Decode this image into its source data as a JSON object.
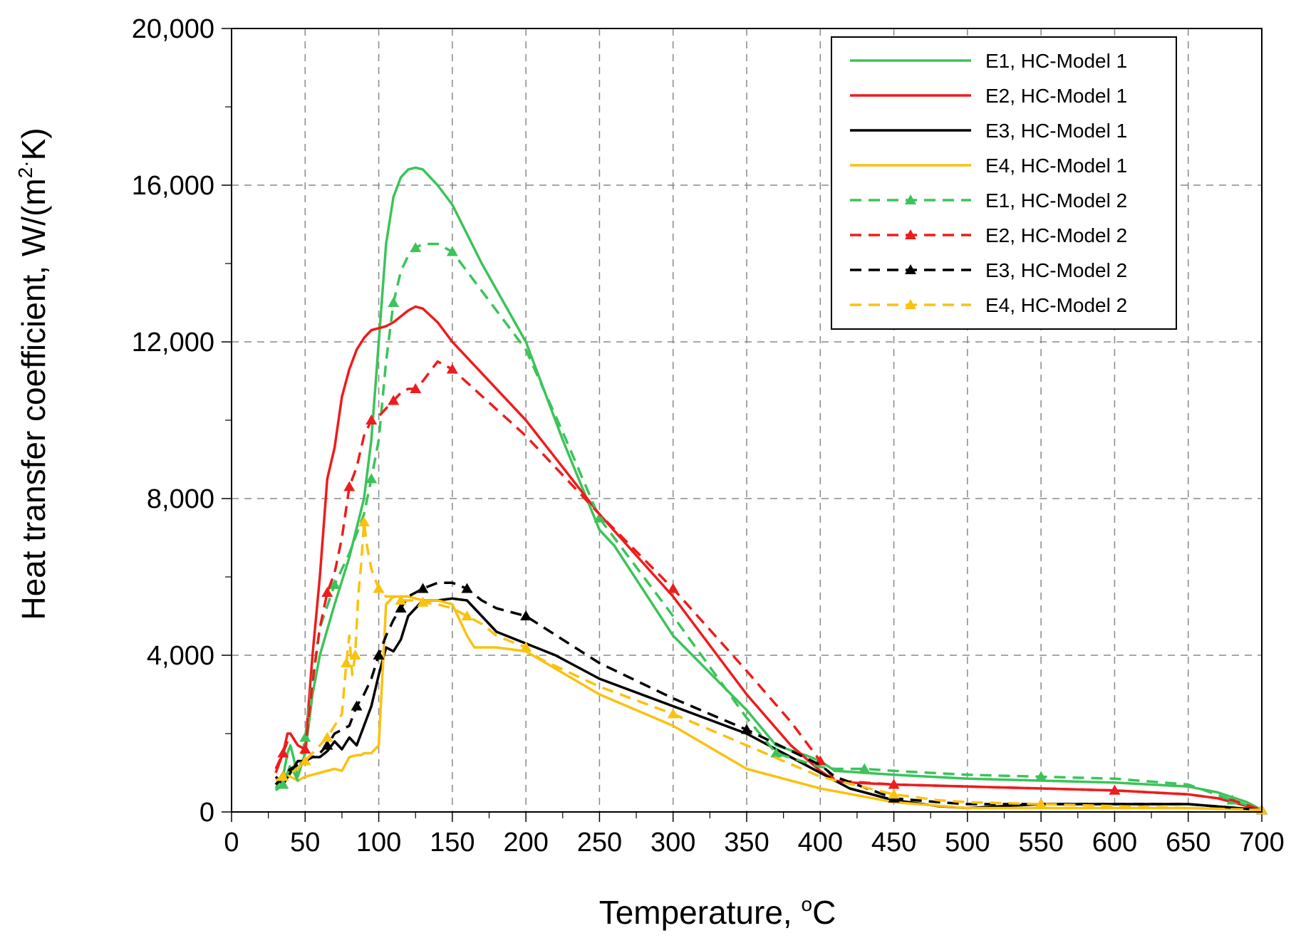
{
  "chart_data": {
    "type": "line",
    "xlabel": "Temperature, ",
    "xlabel_sup": "o",
    "xlabel_unit": "C",
    "ylabel_main": "Heat transfer coefficient, W/(m",
    "ylabel_sup": "2",
    "ylabel_dot": "·",
    "ylabel_end": "K)",
    "xlim": [
      0,
      700
    ],
    "ylim": [
      0,
      20000
    ],
    "x_ticks": [
      "0",
      "50",
      "100",
      "150",
      "200",
      "250",
      "300",
      "350",
      "400",
      "450",
      "500",
      "550",
      "600",
      "650",
      "700"
    ],
    "y_ticks": [
      "0",
      "4,000",
      "8,000",
      "12,000",
      "16,000",
      "20,000"
    ],
    "grid": true,
    "legend_position": "top-right",
    "series": [
      {
        "name": "E1, HC-Model 1",
        "color": "#3cc35a",
        "dash": false,
        "marker": false,
        "x": [
          30,
          35,
          38,
          40,
          42,
          45,
          50,
          55,
          60,
          70,
          80,
          90,
          95,
          100,
          105,
          110,
          115,
          120,
          125,
          130,
          140,
          150,
          170,
          200,
          225,
          250,
          260,
          300,
          350,
          370,
          390,
          400,
          410,
          450,
          500,
          550,
          600,
          650,
          670,
          690,
          700
        ],
        "y": [
          600,
          900,
          1500,
          1700,
          1400,
          900,
          1500,
          3000,
          4000,
          5300,
          6500,
          8000,
          9500,
          12000,
          14500,
          15700,
          16200,
          16400,
          16450,
          16400,
          16000,
          15500,
          14000,
          12000,
          9500,
          7200,
          6800,
          4500,
          2600,
          1700,
          1450,
          1300,
          1050,
          950,
          850,
          800,
          750,
          650,
          500,
          250,
          50
        ]
      },
      {
        "name": "E2, HC-Model 1",
        "color": "#ee1c1c",
        "dash": false,
        "marker": false,
        "x": [
          30,
          35,
          38,
          40,
          45,
          50,
          55,
          60,
          65,
          70,
          75,
          80,
          85,
          90,
          95,
          100,
          105,
          110,
          115,
          120,
          125,
          130,
          140,
          150,
          200,
          250,
          300,
          350,
          380,
          400,
          410,
          420,
          450,
          500,
          550,
          600,
          650,
          670,
          700
        ],
        "y": [
          1000,
          1500,
          2000,
          2000,
          1700,
          1600,
          4000,
          6000,
          8500,
          9300,
          10600,
          11300,
          11800,
          12100,
          12300,
          12350,
          12400,
          12500,
          12650,
          12800,
          12900,
          12850,
          12500,
          12000,
          10000,
          7600,
          5500,
          3000,
          1700,
          1050,
          800,
          750,
          700,
          650,
          600,
          550,
          450,
          350,
          50
        ]
      },
      {
        "name": "E3, HC-Model 1",
        "color": "#000000",
        "dash": false,
        "marker": false,
        "x": [
          30,
          35,
          40,
          45,
          50,
          55,
          60,
          65,
          70,
          75,
          80,
          85,
          90,
          95,
          100,
          105,
          110,
          115,
          120,
          130,
          140,
          150,
          160,
          170,
          180,
          200,
          220,
          240,
          250,
          300,
          350,
          400,
          420,
          450,
          480,
          500,
          550,
          600,
          650,
          700
        ],
        "y": [
          900,
          700,
          1000,
          1300,
          1300,
          1400,
          1400,
          1550,
          1800,
          1600,
          1900,
          1700,
          2200,
          2700,
          3500,
          4200,
          4100,
          4400,
          5000,
          5400,
          5400,
          5450,
          5400,
          5000,
          4600,
          4300,
          4000,
          3600,
          3400,
          2700,
          2000,
          1000,
          600,
          300,
          150,
          100,
          200,
          200,
          200,
          50
        ]
      },
      {
        "name": "E4, HC-Model 1",
        "color": "#fac10f",
        "dash": false,
        "marker": false,
        "x": [
          30,
          35,
          40,
          45,
          50,
          55,
          60,
          70,
          75,
          80,
          85,
          88,
          90,
          92,
          95,
          100,
          105,
          110,
          115,
          120,
          130,
          140,
          150,
          155,
          160,
          165,
          170,
          180,
          200,
          250,
          300,
          350,
          400,
          450,
          500,
          550,
          600,
          650,
          700
        ],
        "y": [
          700,
          1000,
          900,
          800,
          900,
          950,
          1000,
          1100,
          1050,
          1400,
          1450,
          1450,
          1500,
          1500,
          1500,
          1700,
          5300,
          5500,
          5500,
          5500,
          5400,
          5400,
          5300,
          4900,
          4500,
          4200,
          4200,
          4200,
          4100,
          3000,
          2200,
          1100,
          600,
          250,
          100,
          100,
          100,
          100,
          50
        ]
      },
      {
        "name": "E1, HC-Model 2",
        "color": "#3cc35a",
        "dash": true,
        "marker": true,
        "x": [
          30,
          35,
          40,
          45,
          50,
          55,
          60,
          70,
          80,
          90,
          95,
          100,
          105,
          110,
          115,
          120,
          125,
          130,
          140,
          150,
          200,
          225,
          250,
          300,
          350,
          370,
          400,
          410,
          430,
          450,
          500,
          550,
          600,
          650,
          680,
          700
        ],
        "y": [
          550,
          700,
          1200,
          800,
          1900,
          3400,
          4700,
          5800,
          6600,
          7600,
          8500,
          9500,
          11500,
          13000,
          13800,
          14200,
          14400,
          14500,
          14500,
          14300,
          11800,
          9700,
          7500,
          5000,
          2400,
          1500,
          1150,
          1100,
          1100,
          1050,
          950,
          900,
          850,
          700,
          300,
          50
        ]
      },
      {
        "name": "E2, HC-Model 2",
        "color": "#ee1c1c",
        "dash": true,
        "marker": true,
        "x": [
          30,
          35,
          40,
          45,
          50,
          55,
          60,
          65,
          70,
          75,
          80,
          85,
          90,
          95,
          100,
          105,
          110,
          115,
          120,
          125,
          130,
          140,
          150,
          200,
          250,
          300,
          350,
          380,
          400,
          410,
          430,
          450,
          500,
          550,
          600,
          650,
          680,
          700
        ],
        "y": [
          1100,
          1500,
          2000,
          1700,
          1600,
          3300,
          4700,
          5600,
          6100,
          7000,
          8300,
          8800,
          9600,
          10000,
          10100,
          10300,
          10500,
          10700,
          10800,
          10800,
          11000,
          11500,
          11300,
          9600,
          7600,
          5700,
          3600,
          2300,
          1300,
          800,
          750,
          700,
          650,
          600,
          550,
          450,
          300,
          50
        ]
      },
      {
        "name": "E3, HC-Model 2",
        "color": "#000000",
        "dash": true,
        "marker": true,
        "x": [
          30,
          35,
          40,
          45,
          50,
          55,
          60,
          65,
          70,
          80,
          85,
          90,
          95,
          100,
          105,
          110,
          115,
          120,
          125,
          130,
          140,
          150,
          160,
          170,
          180,
          200,
          250,
          300,
          350,
          400,
          410,
          450,
          480,
          500,
          550,
          600,
          650,
          700
        ],
        "y": [
          700,
          900,
          1100,
          1200,
          1300,
          1400,
          1500,
          1700,
          2000,
          2200,
          2700,
          3000,
          3400,
          4000,
          4500,
          4900,
          5200,
          5500,
          5600,
          5700,
          5850,
          5850,
          5700,
          5400,
          5200,
          5000,
          3800,
          2900,
          2100,
          1200,
          900,
          350,
          250,
          200,
          200,
          200,
          200,
          50
        ]
      },
      {
        "name": "E4, HC-Model 2",
        "color": "#fac10f",
        "dash": true,
        "marker": true,
        "x": [
          30,
          35,
          40,
          45,
          50,
          55,
          60,
          65,
          70,
          75,
          78,
          80,
          82,
          84,
          86,
          88,
          90,
          92,
          95,
          100,
          105,
          110,
          115,
          120,
          125,
          130,
          140,
          150,
          160,
          170,
          180,
          200,
          210,
          250,
          300,
          350,
          400,
          450,
          480,
          500,
          550,
          600,
          650,
          700
        ],
        "y": [
          800,
          900,
          1000,
          1100,
          1300,
          1500,
          1700,
          1900,
          2200,
          2500,
          3800,
          4500,
          3500,
          4000,
          5500,
          6300,
          7400,
          6800,
          6200,
          5700,
          5500,
          5500,
          5400,
          5400,
          5400,
          5350,
          5300,
          5200,
          5000,
          4800,
          4500,
          4200,
          3900,
          3200,
          2500,
          1700,
          900,
          450,
          300,
          250,
          200,
          150,
          100,
          50
        ]
      }
    ]
  }
}
